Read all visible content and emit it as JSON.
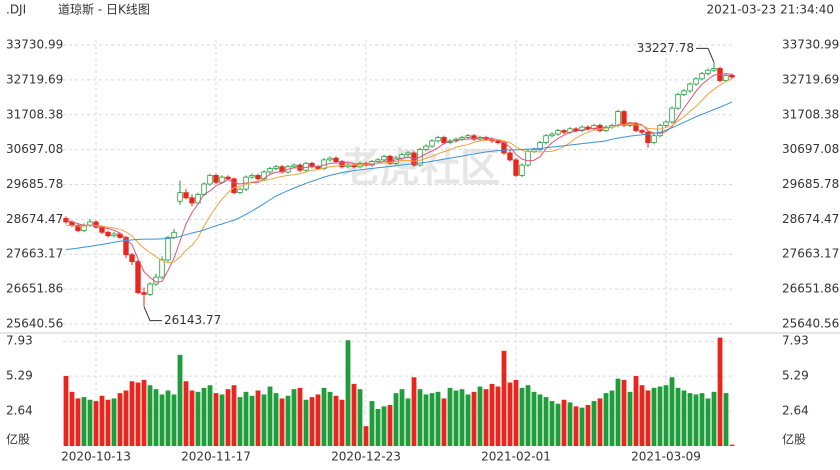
{
  "chart_data": {
    "type": "candlestick",
    "symbol": ".DJI",
    "title": "道琼斯 - 日K线图",
    "timestamp": "2021-03-23 21:34:40",
    "watermark": "老虎社区",
    "up_color": "#1f9d3a",
    "down_color": "#e8261d",
    "grid": true,
    "categories": [
      null,
      null,
      null,
      null,
      null,
      "2020-10-13",
      null,
      null,
      null,
      null,
      null,
      null,
      null,
      null,
      null,
      null,
      null,
      null,
      null,
      null,
      null,
      null,
      null,
      null,
      null,
      "2020-11-17",
      null,
      null,
      null,
      null,
      null,
      null,
      null,
      null,
      null,
      null,
      null,
      null,
      null,
      null,
      null,
      null,
      null,
      null,
      null,
      null,
      null,
      null,
      null,
      null,
      "2020-12-23",
      null,
      null,
      null,
      null,
      null,
      null,
      null,
      null,
      null,
      null,
      null,
      null,
      null,
      null,
      null,
      null,
      null,
      null,
      null,
      null,
      null,
      null,
      null,
      null,
      "2021-02-01",
      null,
      null,
      null,
      null,
      null,
      null,
      null,
      null,
      null,
      null,
      null,
      null,
      null,
      null,
      null,
      null,
      null,
      null,
      null,
      null,
      null,
      null,
      null,
      null,
      "2021-03-09",
      null,
      null,
      null,
      null,
      null,
      null,
      null,
      null,
      null,
      null,
      null
    ],
    "candles": [
      [
        28700,
        28760,
        28550,
        28600
      ],
      [
        28600,
        28650,
        28450,
        28500
      ],
      [
        28500,
        28550,
        28300,
        28350
      ],
      [
        28350,
        28560,
        28300,
        28500
      ],
      [
        28500,
        28680,
        28450,
        28600
      ],
      [
        28600,
        28650,
        28400,
        28450
      ],
      [
        28450,
        28500,
        28250,
        28300
      ],
      [
        28300,
        28350,
        28150,
        28200
      ],
      [
        28200,
        28320,
        28150,
        28250
      ],
      [
        28250,
        28300,
        28100,
        28150
      ],
      [
        28150,
        28200,
        27550,
        27650
      ],
      [
        27650,
        27700,
        27350,
        27450
      ],
      [
        27450,
        27500,
        26500,
        26550
      ],
      [
        26550,
        26700,
        26143.77,
        26500
      ],
      [
        26500,
        26850,
        26450,
        26800
      ],
      [
        26800,
        27100,
        26750,
        27000
      ],
      [
        27000,
        27600,
        26950,
        27500
      ],
      [
        27500,
        28200,
        27450,
        28150
      ],
      [
        28150,
        28400,
        28100,
        28300
      ],
      [
        29200,
        29800,
        29100,
        29450
      ],
      [
        29450,
        29550,
        29250,
        29300
      ],
      [
        29300,
        29400,
        29050,
        29150
      ],
      [
        29150,
        29450,
        29100,
        29400
      ],
      [
        29400,
        29750,
        29350,
        29700
      ],
      [
        29700,
        30000,
        29650,
        29950
      ],
      [
        29950,
        30000,
        29700,
        29750
      ],
      [
        29750,
        29950,
        29700,
        29900
      ],
      [
        29900,
        29950,
        29800,
        29850
      ],
      [
        29850,
        29880,
        29400,
        29450
      ],
      [
        29450,
        29600,
        29400,
        29550
      ],
      [
        29550,
        29950,
        29500,
        29900
      ],
      [
        29900,
        30000,
        29850,
        29950
      ],
      [
        29950,
        30000,
        29800,
        29850
      ],
      [
        29850,
        30100,
        29800,
        30050
      ],
      [
        30050,
        30200,
        30000,
        30150
      ],
      [
        30150,
        30250,
        30100,
        30200
      ],
      [
        30200,
        30250,
        30000,
        30050
      ],
      [
        30050,
        30250,
        30000,
        30200
      ],
      [
        30200,
        30300,
        30150,
        30250
      ],
      [
        30250,
        30300,
        30050,
        30100
      ],
      [
        30100,
        30350,
        30050,
        30300
      ],
      [
        30300,
        30350,
        30150,
        30200
      ],
      [
        30200,
        30250,
        30100,
        30150
      ],
      [
        30150,
        30450,
        30100,
        30400
      ],
      [
        30400,
        30500,
        30350,
        30450
      ],
      [
        30450,
        30500,
        30300,
        30350
      ],
      [
        30350,
        30400,
        30150,
        30200
      ],
      [
        30200,
        30300,
        30150,
        30250
      ],
      [
        30250,
        30300,
        30150,
        30200
      ],
      [
        30200,
        30350,
        30150,
        30300
      ],
      [
        30300,
        30350,
        30200,
        30250
      ],
      [
        30250,
        30400,
        30200,
        30350
      ],
      [
        30350,
        30450,
        30300,
        30400
      ],
      [
        30400,
        30550,
        30350,
        30500
      ],
      [
        30500,
        30550,
        30250,
        30300
      ],
      [
        30300,
        30500,
        30250,
        30450
      ],
      [
        30450,
        30600,
        30400,
        30550
      ],
      [
        30550,
        30650,
        30500,
        30600
      ],
      [
        30600,
        30650,
        30200,
        30250
      ],
      [
        30250,
        30750,
        30200,
        30700
      ],
      [
        30700,
        30850,
        30650,
        30800
      ],
      [
        30800,
        31000,
        30750,
        30950
      ],
      [
        30950,
        31100,
        30900,
        31050
      ],
      [
        31050,
        31100,
        30850,
        30900
      ],
      [
        30900,
        31000,
        30850,
        30950
      ],
      [
        30950,
        31050,
        30900,
        31000
      ],
      [
        31000,
        31100,
        30950,
        31050
      ],
      [
        31050,
        31150,
        31000,
        31100
      ],
      [
        31100,
        31150,
        30950,
        31000
      ],
      [
        31000,
        31100,
        30950,
        31050
      ],
      [
        31050,
        31100,
        30950,
        31000
      ],
      [
        31000,
        31050,
        30900,
        30950
      ],
      [
        30950,
        31000,
        30850,
        30900
      ],
      [
        30900,
        30950,
        30550,
        30600
      ],
      [
        30600,
        30700,
        30350,
        30400
      ],
      [
        30400,
        30450,
        29900,
        29950
      ],
      [
        29950,
        30300,
        29900,
        30250
      ],
      [
        30250,
        30700,
        30200,
        30650
      ],
      [
        30650,
        30750,
        30600,
        30700
      ],
      [
        30700,
        30950,
        30650,
        30900
      ],
      [
        30900,
        31150,
        30850,
        31100
      ],
      [
        31100,
        31200,
        31050,
        31150
      ],
      [
        31150,
        31300,
        31100,
        31250
      ],
      [
        31250,
        31300,
        31150,
        31200
      ],
      [
        31200,
        31350,
        31150,
        31300
      ],
      [
        31300,
        31350,
        31200,
        31250
      ],
      [
        31250,
        31400,
        31200,
        31350
      ],
      [
        31350,
        31400,
        31250,
        31300
      ],
      [
        31300,
        31450,
        31250,
        31400
      ],
      [
        31400,
        31450,
        31200,
        31250
      ],
      [
        31250,
        31400,
        31200,
        31350
      ],
      [
        31350,
        31450,
        31300,
        31400
      ],
      [
        31400,
        31850,
        31350,
        31800
      ],
      [
        31800,
        31850,
        31350,
        31400
      ],
      [
        31400,
        31500,
        31350,
        31450
      ],
      [
        31450,
        31500,
        31200,
        31250
      ],
      [
        31250,
        31300,
        31150,
        31200
      ],
      [
        31200,
        31250,
        30750,
        30900
      ],
      [
        30900,
        31150,
        30850,
        31100
      ],
      [
        31100,
        31450,
        31050,
        31400
      ],
      [
        31400,
        31550,
        31350,
        31500
      ],
      [
        31500,
        31950,
        31450,
        31900
      ],
      [
        31900,
        32350,
        31850,
        32300
      ],
      [
        32300,
        32450,
        32250,
        32400
      ],
      [
        32400,
        32650,
        32350,
        32600
      ],
      [
        32600,
        32800,
        32550,
        32750
      ],
      [
        32750,
        32950,
        32700,
        32900
      ],
      [
        32900,
        33050,
        32850,
        33000
      ],
      [
        33000,
        33227.78,
        32950,
        33050
      ],
      [
        33050,
        33100,
        32650,
        32700
      ],
      [
        32700,
        32900,
        32650,
        32850
      ],
      [
        32850,
        32900,
        32750,
        32800
      ]
    ],
    "ma_series": [
      {
        "color": "#e0527a",
        "values": [
          28650,
          28600,
          28550,
          28500,
          28510,
          28480,
          28440,
          28410,
          28360,
          28270,
          28110,
          27940,
          27530,
          27160,
          26990,
          26860,
          26870,
          27190,
          27550,
          28040,
          28540,
          28870,
          29120,
          29400,
          29500,
          29650,
          29740,
          29830,
          29740,
          29700,
          29730,
          29740,
          29740,
          29860,
          29980,
          30040,
          30060,
          30130,
          30170,
          30160,
          30180,
          30210,
          30200,
          30250,
          30300,
          30310,
          30310,
          30330,
          30290,
          30260,
          30240,
          30270,
          30300,
          30360,
          30360,
          30400,
          30440,
          30480,
          30430,
          30480,
          30580,
          30660,
          30750,
          30880,
          30930,
          30970,
          30990,
          31000,
          31020,
          31040,
          31040,
          31020,
          30980,
          30900,
          30770,
          30560,
          30420,
          30370,
          30390,
          30490,
          30720,
          30900,
          31020,
          31120,
          31200,
          31230,
          31270,
          31280,
          31320,
          31310,
          31330,
          31340,
          31420,
          31430,
          31480,
          31460,
          31420,
          31240,
          31180,
          31170,
          31220,
          31360,
          31640,
          31900,
          32140,
          32390,
          32590,
          32730,
          32860,
          32880,
          32900,
          32880
        ]
      },
      {
        "color": "#f0a33a",
        "values": [
          28500,
          28500,
          28480,
          28480,
          28500,
          28500,
          28480,
          28450,
          28420,
          28390,
          28310,
          28200,
          28000,
          27840,
          27710,
          27590,
          27490,
          27420,
          27440,
          27580,
          27780,
          27920,
          28140,
          28470,
          28770,
          29030,
          29260,
          29450,
          29600,
          29630,
          29690,
          29760,
          29780,
          29790,
          29840,
          29880,
          29920,
          29950,
          29970,
          30000,
          30050,
          30100,
          30120,
          30160,
          30200,
          30220,
          30240,
          30240,
          30250,
          30260,
          30280,
          30290,
          30300,
          30310,
          30320,
          30350,
          30380,
          30390,
          30360,
          30390,
          30440,
          30500,
          30580,
          30640,
          30690,
          30770,
          30810,
          30840,
          30910,
          30950,
          30970,
          30980,
          30990,
          30950,
          30900,
          30780,
          30680,
          30640,
          30640,
          30630,
          30640,
          30650,
          30700,
          30790,
          30900,
          31030,
          31130,
          31200,
          31260,
          31290,
          31320,
          31340,
          31400,
          31420,
          31440,
          31410,
          31400,
          31310,
          31300,
          31290,
          31340,
          31390,
          31530,
          31650,
          31810,
          31950,
          32130,
          32310,
          32450,
          32570,
          32670,
          32760
        ]
      },
      {
        "color": "#3b93d6",
        "values": [
          27800,
          27820,
          27840,
          27870,
          27890,
          27920,
          27950,
          27980,
          28010,
          28040,
          28060,
          28080,
          28090,
          28100,
          28100,
          28100,
          28110,
          28120,
          28140,
          28180,
          28230,
          28280,
          28320,
          28370,
          28430,
          28490,
          28540,
          28600,
          28650,
          28730,
          28820,
          28920,
          29020,
          29130,
          29240,
          29350,
          29430,
          29510,
          29580,
          29650,
          29720,
          29780,
          29840,
          29900,
          29950,
          29990,
          30030,
          30060,
          30090,
          30110,
          30130,
          30150,
          30170,
          30190,
          30210,
          30230,
          30250,
          30270,
          30290,
          30310,
          30330,
          30360,
          30390,
          30420,
          30450,
          30480,
          30510,
          30540,
          30570,
          30600,
          30630,
          30650,
          30670,
          30680,
          30690,
          30690,
          30700,
          30710,
          30720,
          30730,
          30750,
          30770,
          30790,
          30810,
          30830,
          30850,
          30870,
          30890,
          30910,
          30930,
          30950,
          31000,
          31030,
          31060,
          31090,
          31110,
          31130,
          31150,
          31170,
          31200,
          31260,
          31330,
          31410,
          31490,
          31570,
          31650,
          31720,
          31790,
          31860,
          31930,
          32000,
          32080
        ]
      }
    ],
    "volumes": [
      5.3,
      4.1,
      3.6,
      3.7,
      3.5,
      3.4,
      3.8,
      3.5,
      3.6,
      4.0,
      4.2,
      4.9,
      4.8,
      5.0,
      4.6,
      4.3,
      3.9,
      4.2,
      3.9,
      6.9,
      4.9,
      4.2,
      4.1,
      4.4,
      4.6,
      4.0,
      3.9,
      4.3,
      4.6,
      3.7,
      4.1,
      3.8,
      4.2,
      3.9,
      4.5,
      4.0,
      3.6,
      3.8,
      4.3,
      4.4,
      3.5,
      3.7,
      3.9,
      4.4,
      4.1,
      3.8,
      3.5,
      8.0,
      4.7,
      4.3,
      1.5,
      3.4,
      2.8,
      3.0,
      3.1,
      4.0,
      4.3,
      3.6,
      5.2,
      4.3,
      3.9,
      4.0,
      4.1,
      3.6,
      4.4,
      4.2,
      4.3,
      3.9,
      4.1,
      4.5,
      4.3,
      4.7,
      4.5,
      7.2,
      4.8,
      5.0,
      4.4,
      4.6,
      4.1,
      3.9,
      3.7,
      3.4,
      3.2,
      3.5,
      3.3,
      3.0,
      2.9,
      3.1,
      3.4,
      3.6,
      4.0,
      4.2,
      5.1,
      5.0,
      4.1,
      5.3,
      4.6,
      4.2,
      4.4,
      4.5,
      4.6,
      5.2,
      4.4,
      4.2,
      4.0,
      3.9,
      4.0,
      3.6,
      4.1,
      8.2,
      4.0,
      0.1
    ],
    "ylim": [
      25640.56,
      33730.99
    ],
    "yticks": [
      25640.56,
      26651.86,
      27663.17,
      28674.47,
      29685.78,
      30697.08,
      31708.38,
      32719.69,
      33730.99
    ],
    "volume_ylim": [
      0,
      8.4
    ],
    "volume_yticks": [
      {
        "value": 0,
        "label": "亿股"
      },
      2.64,
      5.29,
      7.93
    ]
  }
}
